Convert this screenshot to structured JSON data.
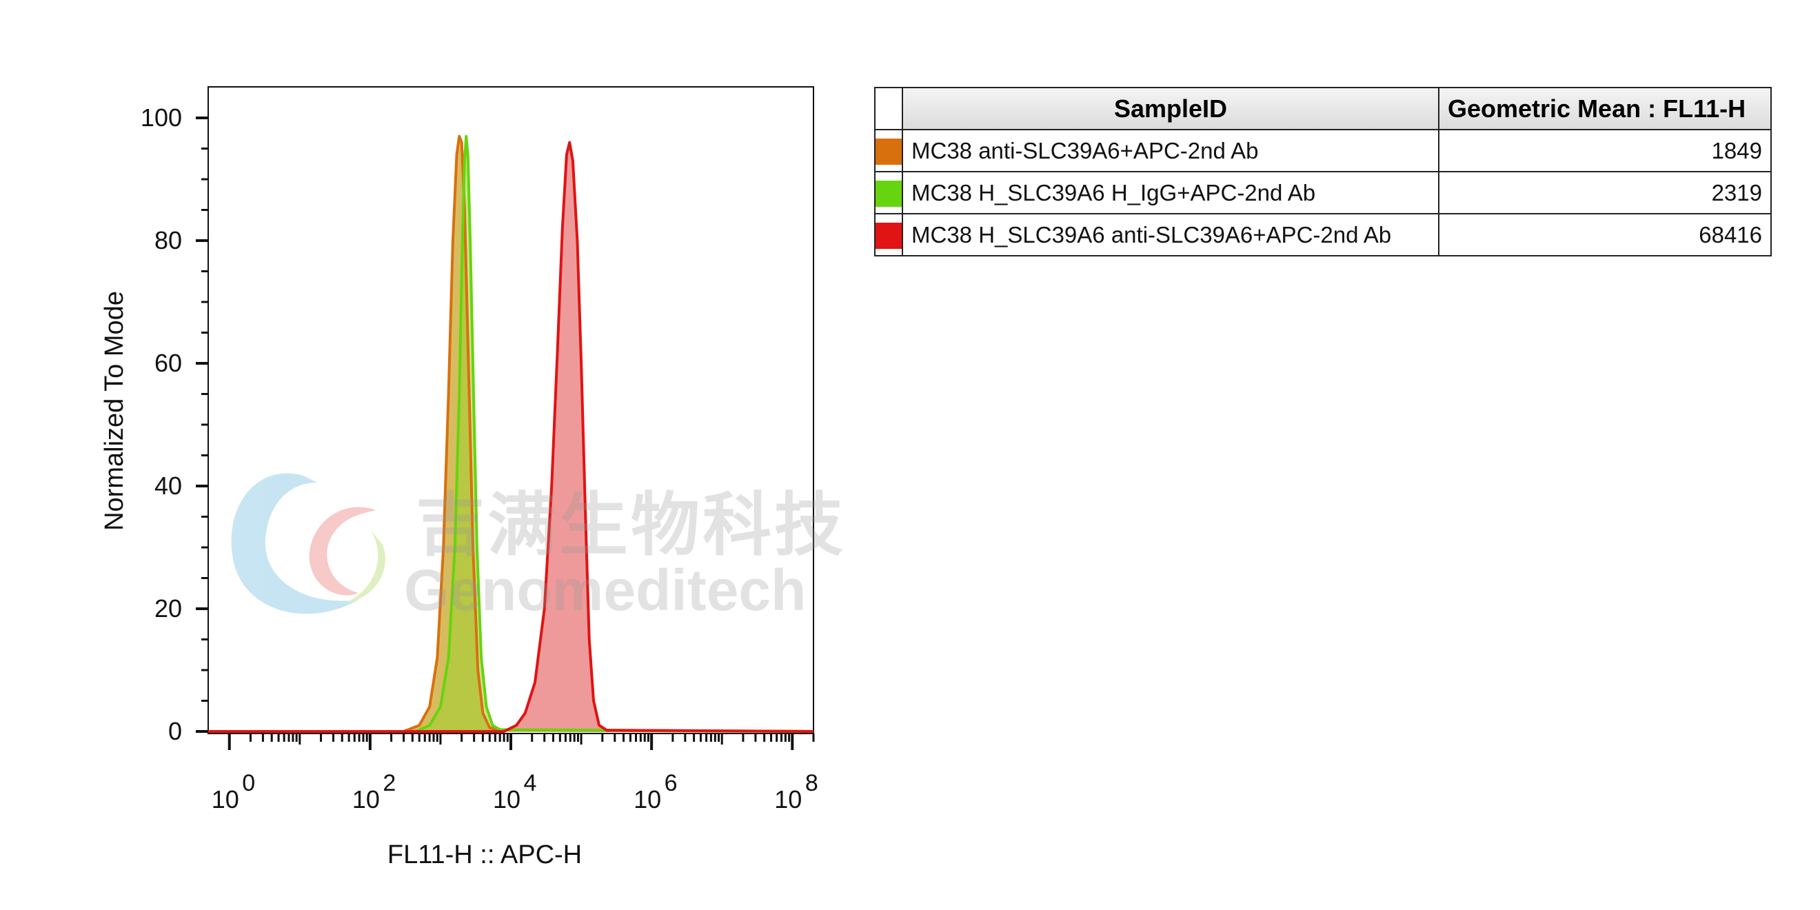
{
  "chart_data": {
    "type": "area",
    "xlabel": "FL11-H :: APC-H",
    "ylabel": "Normalized To Mode",
    "x_scale": "log",
    "xlim": [
      0.5,
      200000000
    ],
    "ylim": [
      0,
      100
    ],
    "x_ticks": [
      {
        "base": "10",
        "exp": "0",
        "value": 1
      },
      {
        "base": "10",
        "exp": "2",
        "value": 100
      },
      {
        "base": "10",
        "exp": "4",
        "value": 10000
      },
      {
        "base": "10",
        "exp": "6",
        "value": 1000000
      },
      {
        "base": "10",
        "exp": "8",
        "value": 100000000
      }
    ],
    "y_ticks": [
      0,
      20,
      40,
      60,
      80,
      100
    ],
    "series": [
      {
        "name": "MC38 anti-SLC39A6+APC-2nd Ab",
        "color": "#d9700e",
        "fill": "#c9a62a",
        "fill_opacity": 0.75,
        "points": [
          [
            0.5,
            0
          ],
          [
            300,
            0
          ],
          [
            500,
            1
          ],
          [
            700,
            4
          ],
          [
            900,
            12
          ],
          [
            1100,
            30
          ],
          [
            1300,
            55
          ],
          [
            1500,
            80
          ],
          [
            1700,
            94
          ],
          [
            1849,
            97
          ],
          [
            2000,
            96
          ],
          [
            2200,
            85
          ],
          [
            2500,
            60
          ],
          [
            2900,
            30
          ],
          [
            3400,
            10
          ],
          [
            4000,
            3
          ],
          [
            5000,
            0.6
          ],
          [
            7000,
            0.2
          ],
          [
            200000000,
            0
          ]
        ]
      },
      {
        "name": "MC38 H_SLC39A6 H_IgG+APC-2nd Ab",
        "color": "#66d40e",
        "fill": "#9fcf2e",
        "fill_opacity": 0.55,
        "points": [
          [
            0.5,
            0
          ],
          [
            450,
            0
          ],
          [
            700,
            1
          ],
          [
            1000,
            4
          ],
          [
            1300,
            12
          ],
          [
            1600,
            30
          ],
          [
            1850,
            55
          ],
          [
            2050,
            80
          ],
          [
            2200,
            93
          ],
          [
            2319,
            97
          ],
          [
            2450,
            94
          ],
          [
            2650,
            80
          ],
          [
            2950,
            55
          ],
          [
            3300,
            30
          ],
          [
            3800,
            12
          ],
          [
            4500,
            4
          ],
          [
            5500,
            1
          ],
          [
            7000,
            0.3
          ],
          [
            200000000,
            0
          ]
        ]
      },
      {
        "name": "MC38 H_SLC39A6 anti-SLC39A6+APC-2nd Ab",
        "color": "#e01414",
        "fill": "#e97373",
        "fill_opacity": 0.72,
        "points": [
          [
            0.5,
            0
          ],
          [
            8000,
            0
          ],
          [
            12000,
            1
          ],
          [
            16000,
            3
          ],
          [
            22000,
            8
          ],
          [
            30000,
            20
          ],
          [
            38000,
            40
          ],
          [
            46000,
            62
          ],
          [
            54000,
            82
          ],
          [
            62000,
            94
          ],
          [
            68416,
            96
          ],
          [
            76000,
            93
          ],
          [
            88000,
            80
          ],
          [
            100000,
            60
          ],
          [
            115000,
            35
          ],
          [
            130000,
            15
          ],
          [
            150000,
            5
          ],
          [
            180000,
            1
          ],
          [
            230000,
            0.2
          ],
          [
            200000000,
            0
          ]
        ]
      }
    ]
  },
  "legend": {
    "col_sample": "SampleID",
    "col_mean": "Geometric Mean : FL11-H",
    "rows": [
      {
        "color": "#d9700e",
        "sample": "MC38 anti-SLC39A6+APC-2nd Ab",
        "mean": "1849"
      },
      {
        "color": "#66d40e",
        "sample": "MC38 H_SLC39A6 H_IgG+APC-2nd Ab",
        "mean": "2319"
      },
      {
        "color": "#e01414",
        "sample": "MC38 H_SLC39A6 anti-SLC39A6+APC-2nd Ab",
        "mean": "68416"
      }
    ]
  },
  "watermark": {
    "cn": "吉满生物科技",
    "en": "Genomeditech"
  }
}
